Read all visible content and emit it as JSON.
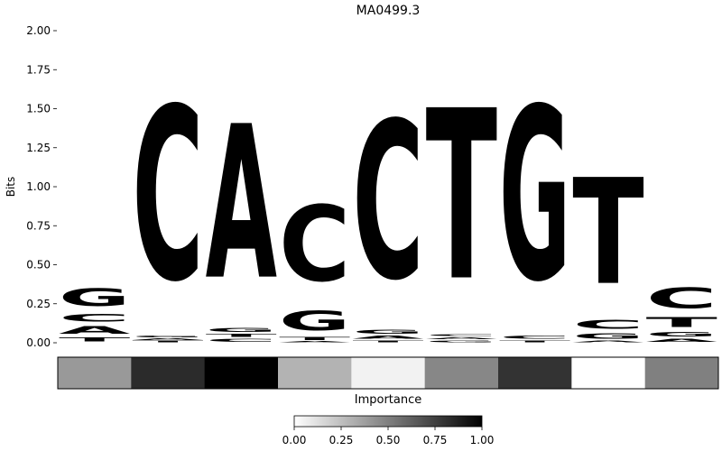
{
  "chart_data": {
    "type": "sequence-logo",
    "title": "MA0499.3",
    "ylabel": "Bits",
    "xlabel": "Importance",
    "ylim": [
      0,
      2.0
    ],
    "yticks": [
      "0.00",
      "0.25",
      "0.50",
      "0.75",
      "1.00",
      "1.25",
      "1.50",
      "1.75",
      "2.00"
    ],
    "letter_colors": {
      "A": "#4aa84a",
      "C": "#4b4bf5",
      "G": "#ffbe4a",
      "T": "#ff4a4a"
    },
    "positions": [
      {
        "letters": [
          {
            "base": "T",
            "bits": 0.04
          },
          {
            "base": "A",
            "bits": 0.08
          },
          {
            "base": "C",
            "bits": 0.08
          },
          {
            "base": "G",
            "bits": 0.18
          }
        ]
      },
      {
        "letters": [
          {
            "base": "T",
            "bits": 0.015
          },
          {
            "base": "A",
            "bits": 0.015
          },
          {
            "base": "G",
            "bits": 0.02
          },
          {
            "base": "C",
            "bits": 1.78
          }
        ]
      },
      {
        "letters": [
          {
            "base": "C",
            "bits": 0.03
          },
          {
            "base": "T",
            "bits": 0.03
          },
          {
            "base": "G",
            "bits": 0.04
          },
          {
            "base": "A",
            "bits": 1.58
          }
        ]
      },
      {
        "letters": [
          {
            "base": "A",
            "bits": 0.01
          },
          {
            "base": "T",
            "bits": 0.03
          },
          {
            "base": "G",
            "bits": 0.2
          },
          {
            "base": "C",
            "bits": 0.78
          }
        ]
      },
      {
        "letters": [
          {
            "base": "T",
            "bits": 0.02
          },
          {
            "base": "A",
            "bits": 0.03
          },
          {
            "base": "G",
            "bits": 0.04
          },
          {
            "base": "C",
            "bits": 1.62
          }
        ]
      },
      {
        "letters": [
          {
            "base": "G",
            "bits": 0.02
          },
          {
            "base": "A",
            "bits": 0.02
          },
          {
            "base": "C",
            "bits": 0.02
          },
          {
            "base": "T",
            "bits": 1.75
          }
        ]
      },
      {
        "letters": [
          {
            "base": "T",
            "bits": 0.02
          },
          {
            "base": "C",
            "bits": 0.03
          },
          {
            "base": "G",
            "bits": 1.78
          }
        ]
      },
      {
        "letters": [
          {
            "base": "A",
            "bits": 0.015
          },
          {
            "base": "G",
            "bits": 0.055
          },
          {
            "base": "C",
            "bits": 0.09
          },
          {
            "base": "T",
            "bits": 1.09
          }
        ]
      },
      {
        "letters": [
          {
            "base": "A",
            "bits": 0.03
          },
          {
            "base": "G",
            "bits": 0.05
          },
          {
            "base": "T",
            "bits": 0.1
          },
          {
            "base": "C",
            "bits": 0.21
          }
        ]
      }
    ],
    "importance": [
      0.4,
      0.83,
      1.0,
      0.3,
      0.05,
      0.47,
      0.8,
      0.0,
      0.5
    ],
    "colorbar": {
      "range": [
        0,
        1
      ],
      "ticks": [
        "0.00",
        "0.25",
        "0.50",
        "0.75",
        "1.00"
      ]
    }
  }
}
